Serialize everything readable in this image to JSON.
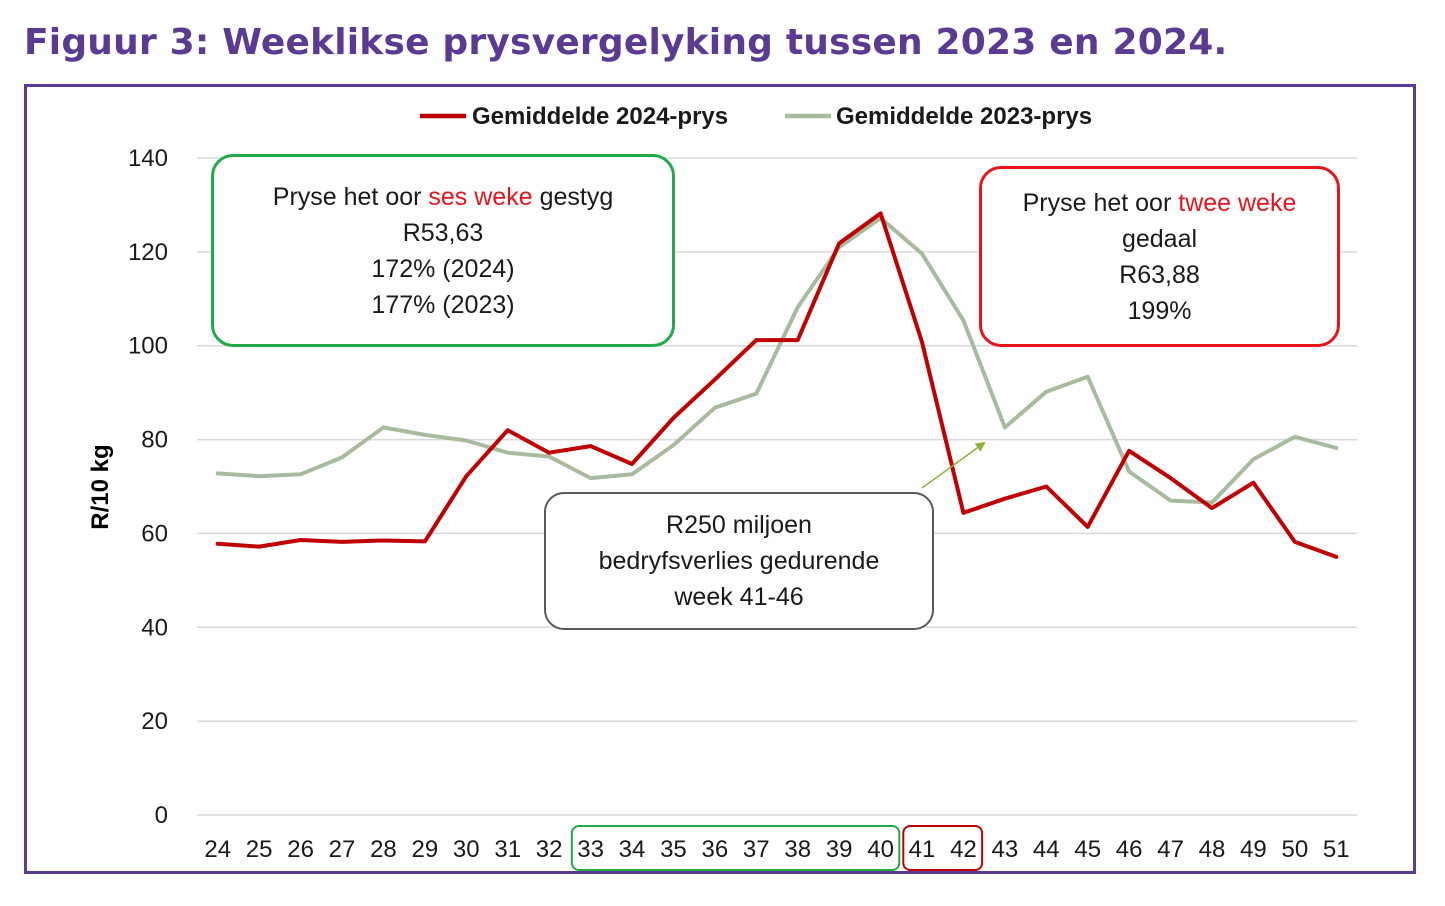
{
  "title": "Figuur 3: Weeklikse prysvergelyking tussen 2023 en 2024.",
  "chart_data": {
    "type": "line",
    "ylabel": "R/10 kg",
    "xlabel": "",
    "ylim": [
      0,
      140
    ],
    "yticks": [
      0,
      20,
      40,
      60,
      80,
      100,
      120,
      140
    ],
    "grid": "horizontal",
    "legend_position": "top-center",
    "x": [
      "24",
      "25",
      "26",
      "27",
      "28",
      "29",
      "30",
      "31",
      "32",
      "33",
      "34",
      "35",
      "36",
      "37",
      "38",
      "39",
      "40",
      "41",
      "42",
      "43",
      "44",
      "45",
      "46",
      "47",
      "48",
      "49",
      "50",
      "51"
    ],
    "series": [
      {
        "name": "Gemiddelde 2024-prys",
        "color": "#c00000",
        "values": [
          57.8,
          57.2,
          58.6,
          58.2,
          58.5,
          58.3,
          72.2,
          82.0,
          77.2,
          78.6,
          74.8,
          84.6,
          92.8,
          101.2,
          101.2,
          121.8,
          128.2,
          100.8,
          64.4,
          67.4,
          70.0,
          61.4,
          77.6,
          71.8,
          65.4,
          70.8,
          58.2,
          55.0
        ]
      },
      {
        "name": "Gemiddelde 2023-prys",
        "color": "#a9bb9e",
        "values": [
          72.8,
          72.2,
          72.6,
          76.2,
          82.6,
          81.0,
          79.8,
          77.2,
          76.4,
          71.8,
          72.6,
          78.8,
          86.8,
          89.8,
          108.2,
          121.0,
          127.2,
          119.6,
          105.4,
          82.6,
          90.2,
          93.4,
          73.2,
          67.0,
          66.6,
          75.8,
          80.6,
          78.2
        ]
      }
    ],
    "highlights": [
      {
        "from": "33",
        "to": "40",
        "color": "#22a94a"
      },
      {
        "from": "41",
        "to": "42",
        "color": "#c00000"
      }
    ],
    "annotations": {
      "rise": {
        "line1_pre": "Pryse het oor ",
        "line1_hl": "ses weke",
        "line1_post": " gestyg",
        "line2": "R53,63",
        "line3": "172% (2024)",
        "line4": "177% (2023)"
      },
      "fall": {
        "line1_pre": "Pryse het oor ",
        "line1_hl": "twee weke",
        "line2": "gedaal",
        "line3": "R63,88",
        "line4": "199%"
      },
      "loss": {
        "line1": "R250 miljoen",
        "line2": "bedryfsverlies gedurende",
        "line3": "week 41-46"
      }
    },
    "colors": {
      "frame": "#5b3a93",
      "gridline": "#d9d9d9",
      "arrow": "#8db33a"
    }
  }
}
